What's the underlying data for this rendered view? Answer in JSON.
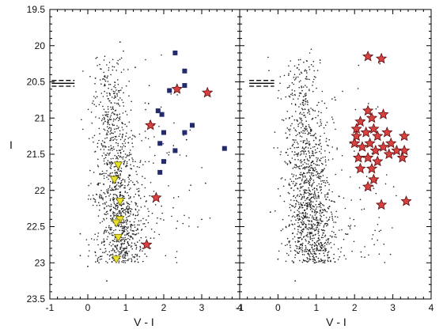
{
  "chart_data": [
    {
      "type": "scatter",
      "panel": "left",
      "xlabel": "V - I",
      "ylabel": "I",
      "xlim": [
        -1,
        4
      ],
      "ylim": [
        23.5,
        19.5
      ],
      "y_inverted": true,
      "grid": false,
      "xticks": [
        -1,
        0,
        1,
        2,
        3,
        4
      ],
      "xtick_labels": [
        "-1",
        "0",
        "1",
        "2",
        "3",
        "4"
      ],
      "yticks": [
        19.5,
        20,
        20.5,
        21,
        21.5,
        22,
        22.5,
        23,
        23.5
      ],
      "ytick_labels": [
        "19.5",
        "20",
        "20.5",
        "21",
        "21.5",
        "22",
        "22.5",
        "23",
        "23.5"
      ],
      "reference_lines": [
        {
          "x": [
            -0.95,
            -0.35
          ],
          "y": 20.48,
          "style": "dashed"
        },
        {
          "x": [
            -0.95,
            -0.35
          ],
          "y": 20.52,
          "style": "solid"
        },
        {
          "x": [
            -0.95,
            -0.35
          ],
          "y": 20.56,
          "style": "dashed"
        }
      ],
      "series": [
        {
          "marker": "dot",
          "color": "#222222",
          "note_count": 1200,
          "points": [
            {
              "x": 0.85,
              "y": 19.95
            },
            {
              "x": 1.25,
              "y": 20.3
            },
            {
              "x": 0.2,
              "y": 20.45
            },
            {
              "x": 1.6,
              "y": 20.8
            },
            {
              "x": 2.6,
              "y": 21.3
            },
            {
              "x": 3.1,
              "y": 21.9
            },
            {
              "x": 3.0,
              "y": 22.4
            },
            {
              "x": -0.2,
              "y": 22.6
            },
            {
              "x": -0.2,
              "y": 22.9
            },
            {
              "x": 0.5,
              "y": 23.25
            },
            {
              "x": 0.0,
              "y": 23.05
            }
          ]
        },
        {
          "marker": "star",
          "color": "#d94040",
          "points": [
            {
              "x": 2.35,
              "y": 20.6
            },
            {
              "x": 3.15,
              "y": 20.65
            },
            {
              "x": 1.65,
              "y": 21.1
            },
            {
              "x": 1.8,
              "y": 22.1
            },
            {
              "x": 1.55,
              "y": 22.75
            }
          ]
        },
        {
          "marker": "square",
          "color": "#232a6e",
          "points": [
            {
              "x": 2.3,
              "y": 20.1
            },
            {
              "x": 2.55,
              "y": 20.35
            },
            {
              "x": 2.15,
              "y": 20.62
            },
            {
              "x": 2.55,
              "y": 20.55
            },
            {
              "x": 1.85,
              "y": 20.9
            },
            {
              "x": 1.95,
              "y": 20.95
            },
            {
              "x": 2.0,
              "y": 21.2
            },
            {
              "x": 2.55,
              "y": 21.2
            },
            {
              "x": 1.9,
              "y": 21.35
            },
            {
              "x": 2.3,
              "y": 21.45
            },
            {
              "x": 2.0,
              "y": 21.6
            },
            {
              "x": 1.9,
              "y": 21.75
            },
            {
              "x": 2.75,
              "y": 21.1
            },
            {
              "x": 3.6,
              "y": 21.42
            }
          ]
        },
        {
          "marker": "triangle-down",
          "color": "#e8e02a",
          "points": [
            {
              "x": 0.8,
              "y": 21.65
            },
            {
              "x": 0.7,
              "y": 21.85
            },
            {
              "x": 0.85,
              "y": 22.15
            },
            {
              "x": 0.85,
              "y": 22.4
            },
            {
              "x": 0.75,
              "y": 22.45
            },
            {
              "x": 0.8,
              "y": 22.65
            },
            {
              "x": 0.75,
              "y": 22.95
            }
          ]
        }
      ]
    },
    {
      "type": "scatter",
      "panel": "right",
      "xlabel": "V - I",
      "ylabel": "",
      "xlim": [
        -1,
        4
      ],
      "ylim": [
        23.5,
        19.5
      ],
      "y_inverted": true,
      "grid": false,
      "xticks": [
        -1,
        0,
        1,
        2,
        3,
        4
      ],
      "xtick_labels": [
        "-1",
        "0",
        "1",
        "2",
        "3",
        "4"
      ],
      "reference_lines": [
        {
          "x": [
            -0.75,
            -0.1
          ],
          "y": 20.48,
          "style": "dashed"
        },
        {
          "x": [
            -0.75,
            -0.1
          ],
          "y": 20.52,
          "style": "solid"
        },
        {
          "x": [
            -0.75,
            -0.1
          ],
          "y": 20.56,
          "style": "dashed"
        }
      ],
      "series": [
        {
          "marker": "dot",
          "color": "#222222",
          "note_count": 1300,
          "points": [
            {
              "x": 0.7,
              "y": 20.35
            },
            {
              "x": 1.1,
              "y": 20.2
            },
            {
              "x": 1.5,
              "y": 20.75
            },
            {
              "x": -0.2,
              "y": 22.3
            },
            {
              "x": 0.0,
              "y": 22.95
            },
            {
              "x": 0.45,
              "y": 23.25
            }
          ]
        },
        {
          "marker": "star",
          "color": "#d94040",
          "points": [
            {
              "x": 2.35,
              "y": 20.15
            },
            {
              "x": 2.7,
              "y": 20.18
            },
            {
              "x": 2.35,
              "y": 20.9
            },
            {
              "x": 2.15,
              "y": 21.05
            },
            {
              "x": 2.05,
              "y": 21.15
            },
            {
              "x": 2.45,
              "y": 21.0
            },
            {
              "x": 2.75,
              "y": 20.95
            },
            {
              "x": 2.3,
              "y": 21.2
            },
            {
              "x": 2.6,
              "y": 21.25
            },
            {
              "x": 2.85,
              "y": 21.2
            },
            {
              "x": 3.3,
              "y": 21.25
            },
            {
              "x": 2.0,
              "y": 21.35
            },
            {
              "x": 2.2,
              "y": 21.4
            },
            {
              "x": 2.4,
              "y": 21.35
            },
            {
              "x": 2.55,
              "y": 21.45
            },
            {
              "x": 2.75,
              "y": 21.4
            },
            {
              "x": 2.95,
              "y": 21.35
            },
            {
              "x": 3.1,
              "y": 21.45
            },
            {
              "x": 3.3,
              "y": 21.45
            },
            {
              "x": 2.1,
              "y": 21.55
            },
            {
              "x": 2.35,
              "y": 21.55
            },
            {
              "x": 2.6,
              "y": 21.6
            },
            {
              "x": 3.25,
              "y": 21.55
            },
            {
              "x": 2.15,
              "y": 21.7
            },
            {
              "x": 2.45,
              "y": 21.7
            },
            {
              "x": 2.5,
              "y": 21.85
            },
            {
              "x": 2.35,
              "y": 21.95
            },
            {
              "x": 2.7,
              "y": 22.2
            },
            {
              "x": 3.35,
              "y": 22.15
            },
            {
              "x": 2.05,
              "y": 21.25
            },
            {
              "x": 2.5,
              "y": 21.15
            },
            {
              "x": 2.9,
              "y": 21.5
            }
          ]
        }
      ]
    }
  ]
}
